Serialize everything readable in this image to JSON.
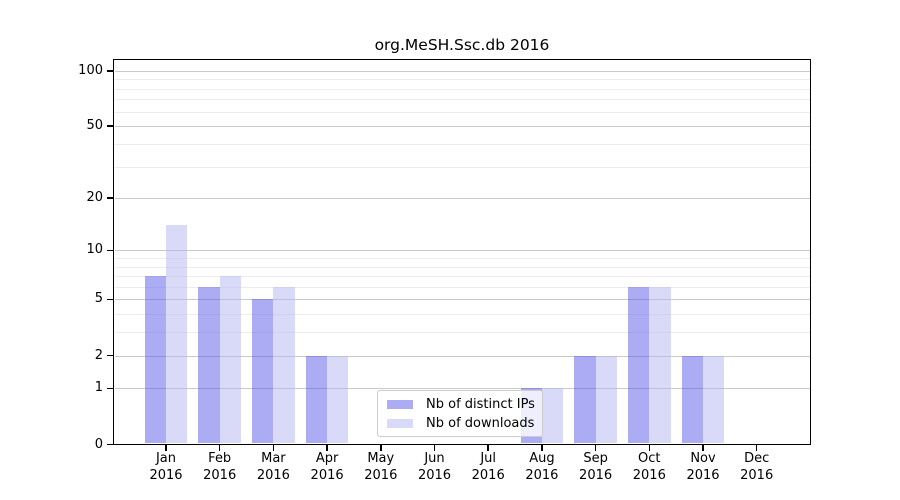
{
  "chart_data": {
    "type": "bar",
    "title": "org.MeSH.Ssc.db 2016",
    "categories": [
      "Jan",
      "Feb",
      "Mar",
      "Apr",
      "May",
      "Jun",
      "Jul",
      "Aug",
      "Sep",
      "Oct",
      "Nov",
      "Dec"
    ],
    "year": "2016",
    "series": [
      {
        "name": "Nb of distinct IPs",
        "color": "rgba(90,90,235,0.5)",
        "values": [
          7,
          6,
          5,
          2,
          0,
          0,
          0,
          1,
          2,
          6,
          2,
          0
        ]
      },
      {
        "name": "Nb of downloads",
        "color": "rgba(180,180,242,0.5)",
        "values": [
          14,
          7,
          6,
          2,
          0,
          0,
          0,
          1,
          2,
          6,
          2,
          0
        ]
      }
    ],
    "xlabel": "",
    "ylabel": "",
    "yscale": "log1p",
    "ylim": [
      0,
      116
    ],
    "yticks": [
      0,
      1,
      2,
      5,
      10,
      20,
      50,
      100
    ],
    "minor_gridlines": [
      3,
      4,
      6,
      7,
      8,
      9,
      30,
      40,
      60,
      70,
      80,
      90
    ],
    "grid": "horizontal",
    "legend_position": "inside-bottom-center"
  }
}
